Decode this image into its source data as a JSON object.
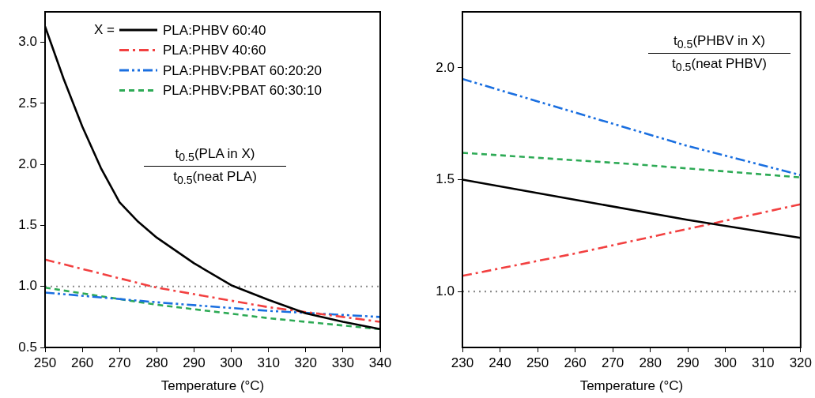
{
  "chart_data": [
    {
      "type": "line",
      "xlabel": "Temperature (°C)",
      "legend": "top right",
      "legend_title": "X =",
      "grid": false,
      "marker": "none",
      "xlim": [
        250,
        340
      ],
      "xticks": [
        250,
        260,
        270,
        280,
        290,
        300,
        310,
        320,
        330,
        340
      ],
      "ylim": [
        0.5,
        3.25
      ],
      "yticks": [
        0.5,
        {
          "value": 1,
          "label": "1.0"
        },
        1.5,
        {
          "value": 2,
          "label": "2.0"
        },
        2.5,
        {
          "value": 3,
          "label": "3.0"
        }
      ],
      "annotations": [
        "t$_{0.5}$(PLA in X)",
        "t$_{0.5}$(neat PLA)"
      ],
      "ref_lines": [
        {
          "axis": "y",
          "value": 1.0,
          "color": "#8c8c8c",
          "line_style": "dotted"
        }
      ],
      "series": [
        {
          "name": "PLA:PHBV 60:40",
          "color": "#000000",
          "line_style": "solid",
          "x": [
            250,
            255,
            260,
            265,
            270,
            275,
            280,
            290,
            300,
            310,
            320,
            330,
            340
          ],
          "values": [
            3.13,
            2.7,
            2.31,
            1.97,
            1.69,
            1.53,
            1.4,
            1.19,
            1.01,
            0.89,
            0.78,
            0.71,
            0.65
          ]
        },
        {
          "name": "PLA:PHBV 40:60",
          "color": "#f24040",
          "line_style": "dashed",
          "x": [
            250,
            280,
            310,
            340
          ],
          "values": [
            1.22,
            0.99,
            0.83,
            0.71
          ]
        },
        {
          "name": "PLA:PHBV:PBAT 60:20:20",
          "color": "#1a6fe0",
          "line_style": "dashed",
          "x": [
            250,
            280,
            310,
            340
          ],
          "values": [
            0.95,
            0.87,
            0.8,
            0.75
          ]
        },
        {
          "name": "PLA:PHBV:PBAT 60:30:10",
          "color": "#2daa55",
          "line_style": "dashed",
          "x": [
            250,
            280,
            310,
            340
          ],
          "values": [
            0.99,
            0.85,
            0.74,
            0.65
          ]
        }
      ]
    },
    {
      "type": "line",
      "xlabel": "Temperature (°C)",
      "grid": false,
      "marker": "none",
      "xlim": [
        230,
        320
      ],
      "xticks": [
        230,
        240,
        250,
        260,
        270,
        280,
        290,
        300,
        310,
        320
      ],
      "ylim": [
        0.75,
        2.25
      ],
      "yticks": [
        {
          "value": 1,
          "label": "1.0"
        },
        1.5,
        {
          "value": 2,
          "label": "2.0"
        }
      ],
      "annotations": [
        "t$_{0.5}$(PHBV in X)",
        "t$_{0.5}$(neat PHBV)"
      ],
      "ref_lines": [
        {
          "axis": "y",
          "value": 1.0,
          "color": "#8c8c8c",
          "line_style": "dotted"
        }
      ],
      "series": [
        {
          "color": "#000000",
          "line_style": "solid",
          "x": [
            230,
            260,
            290,
            320
          ],
          "values": [
            1.5,
            1.41,
            1.32,
            1.24
          ]
        },
        {
          "color": "#f24040",
          "line_style": "dashed",
          "x": [
            230,
            260,
            290,
            320
          ],
          "values": [
            1.07,
            1.17,
            1.28,
            1.39
          ]
        },
        {
          "color": "#1a6fe0",
          "line_style": "dashed",
          "x": [
            230,
            260,
            290,
            320
          ],
          "values": [
            1.95,
            1.8,
            1.65,
            1.52
          ]
        },
        {
          "color": "#2daa55",
          "line_style": "dashed",
          "x": [
            230,
            275,
            320
          ],
          "values": [
            1.62,
            1.57,
            1.51
          ]
        }
      ]
    }
  ]
}
